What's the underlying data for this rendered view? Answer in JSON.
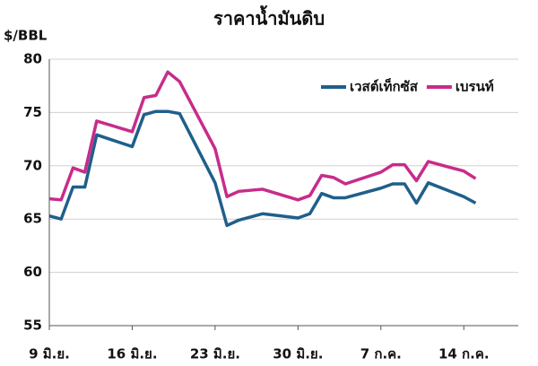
{
  "chart_data": {
    "type": "line",
    "title": "ราคาน้ำมันดิบ",
    "y_label": "$/BBL",
    "x": [
      0,
      1,
      2,
      3,
      4,
      7,
      8,
      9,
      10,
      11,
      14,
      15,
      16,
      18,
      21,
      22,
      23,
      24,
      25,
      28,
      29,
      30,
      31,
      32,
      35,
      36
    ],
    "series": [
      {
        "name": "เวสต์เท็กซัส",
        "color": "#1f5f8b",
        "values": [
          65.3,
          65.0,
          68.0,
          68.0,
          72.9,
          71.8,
          74.8,
          75.1,
          75.1,
          74.9,
          68.4,
          64.4,
          64.9,
          65.5,
          65.1,
          65.5,
          67.4,
          67.0,
          67.0,
          67.9,
          68.3,
          68.3,
          66.5,
          68.4,
          67.1,
          66.5
        ]
      },
      {
        "name": "เบรนท์",
        "color": "#c72c8a",
        "values": [
          66.9,
          66.8,
          69.8,
          69.4,
          74.2,
          73.2,
          76.4,
          76.6,
          78.8,
          77.9,
          71.6,
          67.1,
          67.6,
          67.8,
          66.8,
          67.2,
          69.1,
          68.9,
          68.3,
          69.4,
          70.1,
          70.1,
          68.6,
          70.4,
          69.5,
          68.8
        ]
      }
    ],
    "xlim": [
      0,
      39.6
    ],
    "xticks": [
      {
        "value": 0,
        "label": "9 มิ.ย."
      },
      {
        "value": 7,
        "label": "16 มิ.ย."
      },
      {
        "value": 14,
        "label": "23 มิ.ย."
      },
      {
        "value": 21,
        "label": "30 มิ.ย."
      },
      {
        "value": 28,
        "label": "7 ก.ค."
      },
      {
        "value": 35,
        "label": "14 ก.ค."
      }
    ],
    "ylim": [
      55,
      80
    ],
    "yticks": [
      55,
      60,
      65,
      70,
      75,
      80
    ],
    "grid": true,
    "legend": "top-right"
  }
}
